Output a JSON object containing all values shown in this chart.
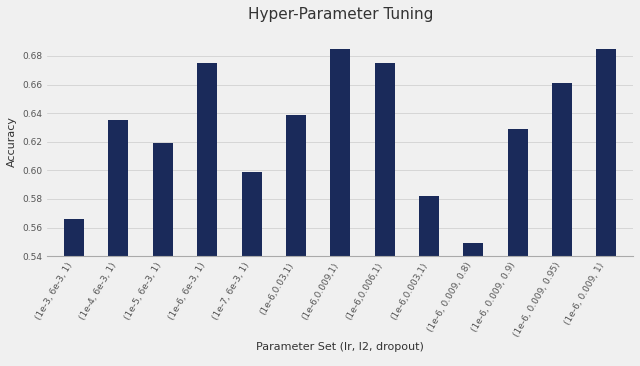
{
  "title": "Hyper-Parameter Tuning",
  "xlabel": "Parameter Set (lr, l2, dropout)",
  "ylabel": "Accuracy",
  "categories": [
    "(1e-3, 6e-3, 1)",
    "(1e-4, 6e-3, 1)",
    "(1e-5, 6e-3, 1)",
    "(1e-6, 6e-3, 1)",
    "(1e-7, 6e-3, 1)",
    "(1e-6,0.03,1)",
    "(1e-6,0.009,1)",
    "(1e-6,0.006,1)",
    "(1e-6,0.003,1)",
    "(1e-6, 0.009, 0.8)",
    "(1e-6, 0.009, 0.9)",
    "(1e-6, 0.009, 0.95)",
    "(1e-6, 0.009, 1)"
  ],
  "values": [
    0.566,
    0.635,
    0.619,
    0.675,
    0.599,
    0.639,
    0.685,
    0.675,
    0.582,
    0.549,
    0.629,
    0.661,
    0.685
  ],
  "bar_color": "#1a2a5a",
  "ylim": [
    0.54,
    0.7
  ],
  "yticks": [
    0.54,
    0.56,
    0.58,
    0.6,
    0.62,
    0.64,
    0.66,
    0.68
  ],
  "background_color": "#f0f0f0",
  "title_fontsize": 11,
  "axis_fontsize": 8,
  "tick_fontsize": 6.5,
  "bar_width": 0.45
}
